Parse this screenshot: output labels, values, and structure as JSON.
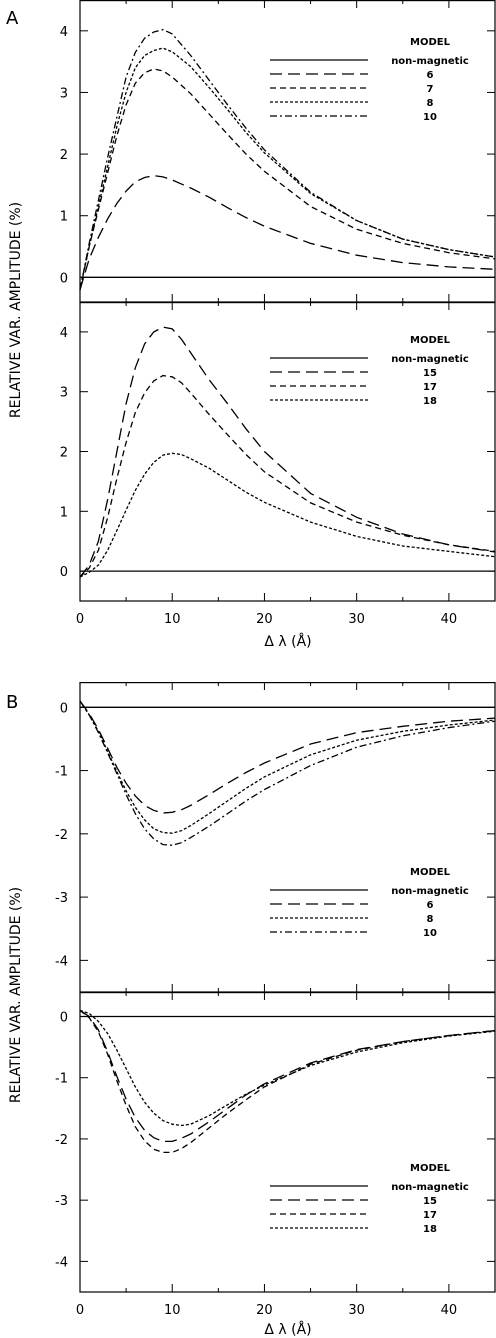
{
  "figure": {
    "panel_a_label": "A",
    "panel_b_label": "B",
    "ylabel": "RELATIVE VAR. AMPLITUDE (%)",
    "xlabel": "Δ λ (Å)"
  },
  "chart_data": [
    {
      "panel": "A",
      "type": "line",
      "position": "top",
      "xlim": [
        0,
        45
      ],
      "ylim": [
        -0.4,
        4.5
      ],
      "yticks": [
        0,
        1,
        2,
        3,
        4
      ],
      "legend_title": "MODEL",
      "legend_placement": "top-right",
      "grid": false,
      "series": [
        {
          "name": "non-magnetic",
          "style": "solid",
          "x": [
            0,
            45
          ],
          "y": [
            0,
            0
          ]
        },
        {
          "name": "6",
          "style": "long-dash",
          "x": [
            0,
            1,
            2,
            3,
            4,
            5,
            6,
            7,
            8,
            9,
            10,
            12,
            14,
            16,
            18,
            20,
            25,
            30,
            35,
            40,
            45
          ],
          "y": [
            -0.2,
            0.3,
            0.65,
            0.95,
            1.2,
            1.4,
            1.55,
            1.62,
            1.65,
            1.63,
            1.58,
            1.45,
            1.3,
            1.13,
            0.97,
            0.83,
            0.55,
            0.36,
            0.24,
            0.17,
            0.13
          ]
        },
        {
          "name": "7",
          "style": "dash",
          "x": [
            0,
            1,
            2,
            3,
            4,
            5,
            6,
            7,
            8,
            9,
            10,
            12,
            14,
            16,
            18,
            20,
            25,
            30,
            35,
            40,
            45
          ],
          "y": [
            -0.2,
            0.5,
            1.1,
            1.7,
            2.3,
            2.8,
            3.15,
            3.32,
            3.38,
            3.35,
            3.25,
            2.98,
            2.65,
            2.32,
            2.0,
            1.72,
            1.15,
            0.78,
            0.55,
            0.4,
            0.3
          ]
        },
        {
          "name": "8",
          "style": "short-dash",
          "x": [
            0,
            1,
            2,
            3,
            4,
            5,
            6,
            7,
            8,
            9,
            10,
            12,
            14,
            16,
            18,
            20,
            25,
            30,
            35,
            40,
            45
          ],
          "y": [
            -0.2,
            0.5,
            1.15,
            1.8,
            2.45,
            3.0,
            3.4,
            3.6,
            3.68,
            3.72,
            3.66,
            3.42,
            3.08,
            2.72,
            2.35,
            2.02,
            1.36,
            0.92,
            0.62,
            0.45,
            0.33
          ]
        },
        {
          "name": "10",
          "style": "dash-dot",
          "x": [
            0,
            1,
            2,
            3,
            4,
            5,
            6,
            7,
            8,
            9,
            10,
            12,
            14,
            16,
            18,
            20,
            25,
            30,
            35,
            40,
            45
          ],
          "y": [
            -0.2,
            0.55,
            1.25,
            1.95,
            2.6,
            3.25,
            3.65,
            3.88,
            3.98,
            4.02,
            3.95,
            3.6,
            3.2,
            2.8,
            2.42,
            2.07,
            1.38,
            0.92,
            0.62,
            0.45,
            0.33
          ]
        }
      ]
    },
    {
      "panel": "A",
      "type": "line",
      "position": "bottom",
      "xlim": [
        0,
        45
      ],
      "ylim": [
        -0.5,
        4.5
      ],
      "yticks": [
        0,
        1,
        2,
        3,
        4
      ],
      "xticks": [
        0,
        10,
        20,
        30,
        40
      ],
      "legend_title": "MODEL",
      "legend_placement": "top-right",
      "grid": false,
      "series": [
        {
          "name": "non-magnetic",
          "style": "solid",
          "x": [
            0,
            45
          ],
          "y": [
            0,
            0
          ]
        },
        {
          "name": "15",
          "style": "long-dash",
          "x": [
            0,
            1,
            2,
            3,
            4,
            5,
            6,
            7,
            8,
            9,
            10,
            11,
            12,
            14,
            16,
            18,
            20,
            25,
            30,
            35,
            40,
            45
          ],
          "y": [
            -0.1,
            0.1,
            0.5,
            1.2,
            2.0,
            2.8,
            3.4,
            3.8,
            4.0,
            4.08,
            4.05,
            3.88,
            3.65,
            3.2,
            2.8,
            2.38,
            2.0,
            1.3,
            0.9,
            0.62,
            0.44,
            0.32
          ]
        },
        {
          "name": "17",
          "style": "dash",
          "x": [
            0,
            1,
            2,
            3,
            4,
            5,
            6,
            7,
            8,
            9,
            10,
            11,
            12,
            14,
            16,
            18,
            20,
            25,
            30,
            35,
            40,
            45
          ],
          "y": [
            -0.1,
            0.05,
            0.35,
            0.9,
            1.55,
            2.15,
            2.65,
            2.98,
            3.18,
            3.27,
            3.25,
            3.15,
            2.98,
            2.62,
            2.28,
            1.95,
            1.66,
            1.14,
            0.82,
            0.6,
            0.44,
            0.33
          ]
        },
        {
          "name": "18",
          "style": "short-dash",
          "x": [
            0,
            1,
            2,
            3,
            4,
            5,
            6,
            7,
            8,
            9,
            10,
            11,
            12,
            14,
            16,
            18,
            20,
            25,
            30,
            35,
            40,
            45
          ],
          "y": [
            -0.1,
            -0.02,
            0.1,
            0.35,
            0.68,
            1.02,
            1.35,
            1.62,
            1.82,
            1.94,
            1.97,
            1.95,
            1.88,
            1.72,
            1.52,
            1.32,
            1.15,
            0.82,
            0.58,
            0.42,
            0.33,
            0.24
          ]
        }
      ]
    },
    {
      "panel": "B",
      "type": "line",
      "position": "top",
      "xlim": [
        0,
        45
      ],
      "ylim": [
        -4.5,
        0.4
      ],
      "yticks": [
        0,
        -1,
        -2,
        -3,
        -4
      ],
      "legend_title": "MODEL",
      "legend_placement": "lower-right",
      "grid": false,
      "series": [
        {
          "name": "non-magnetic",
          "style": "solid",
          "x": [
            0,
            45
          ],
          "y": [
            0,
            0
          ]
        },
        {
          "name": "6",
          "style": "long-dash",
          "x": [
            0,
            1,
            2,
            3,
            4,
            5,
            6,
            7,
            8,
            9,
            10,
            11,
            12,
            14,
            16,
            18,
            20,
            25,
            30,
            35,
            40,
            45
          ],
          "y": [
            0.1,
            -0.1,
            -0.35,
            -0.65,
            -0.95,
            -1.2,
            -1.4,
            -1.55,
            -1.63,
            -1.67,
            -1.66,
            -1.62,
            -1.55,
            -1.38,
            -1.2,
            -1.03,
            -0.88,
            -0.58,
            -0.4,
            -0.3,
            -0.22,
            -0.17
          ]
        },
        {
          "name": "8",
          "style": "short-dash",
          "x": [
            0,
            1,
            2,
            3,
            4,
            5,
            6,
            7,
            8,
            9,
            10,
            11,
            12,
            14,
            16,
            18,
            20,
            25,
            30,
            35,
            40,
            45
          ],
          "y": [
            0.1,
            -0.12,
            -0.38,
            -0.7,
            -1.02,
            -1.32,
            -1.58,
            -1.78,
            -1.92,
            -1.98,
            -1.99,
            -1.95,
            -1.87,
            -1.68,
            -1.48,
            -1.28,
            -1.1,
            -0.75,
            -0.52,
            -0.38,
            -0.28,
            -0.2
          ]
        },
        {
          "name": "10",
          "style": "dash-dot",
          "x": [
            0,
            1,
            2,
            3,
            4,
            5,
            6,
            7,
            8,
            9,
            10,
            11,
            12,
            14,
            16,
            18,
            20,
            25,
            30,
            35,
            40,
            45
          ],
          "y": [
            0.1,
            -0.12,
            -0.4,
            -0.72,
            -1.05,
            -1.38,
            -1.68,
            -1.92,
            -2.08,
            -2.17,
            -2.18,
            -2.14,
            -2.06,
            -1.88,
            -1.68,
            -1.48,
            -1.3,
            -0.92,
            -0.63,
            -0.45,
            -0.32,
            -0.22
          ]
        }
      ]
    },
    {
      "panel": "B",
      "type": "line",
      "position": "bottom",
      "xlim": [
        0,
        45
      ],
      "ylim": [
        -4.5,
        0.4
      ],
      "yticks": [
        0,
        -1,
        -2,
        -3,
        -4
      ],
      "xticks": [
        0,
        10,
        20,
        30,
        40
      ],
      "legend_title": "MODEL",
      "legend_placement": "lower-right",
      "grid": false,
      "series": [
        {
          "name": "non-magnetic",
          "style": "solid",
          "x": [
            0,
            45
          ],
          "y": [
            0,
            0
          ]
        },
        {
          "name": "15",
          "style": "long-dash",
          "x": [
            0,
            1,
            2,
            3,
            4,
            5,
            6,
            7,
            8,
            9,
            10,
            11,
            12,
            14,
            16,
            18,
            20,
            25,
            30,
            35,
            40,
            45
          ],
          "y": [
            0.1,
            0,
            -0.22,
            -0.58,
            -0.98,
            -1.35,
            -1.65,
            -1.86,
            -1.98,
            -2.04,
            -2.04,
            -1.99,
            -1.92,
            -1.72,
            -1.5,
            -1.28,
            -1.1,
            -0.76,
            -0.54,
            -0.41,
            -0.31,
            -0.23
          ]
        },
        {
          "name": "17",
          "style": "dash",
          "x": [
            0,
            1,
            2,
            3,
            4,
            5,
            6,
            7,
            8,
            9,
            10,
            11,
            12,
            14,
            16,
            18,
            20,
            25,
            30,
            35,
            40,
            45
          ],
          "y": [
            0.1,
            -0.02,
            -0.25,
            -0.62,
            -1.05,
            -1.45,
            -1.8,
            -2.03,
            -2.17,
            -2.22,
            -2.22,
            -2.16,
            -2.06,
            -1.82,
            -1.58,
            -1.36,
            -1.15,
            -0.78,
            -0.55,
            -0.41,
            -0.31,
            -0.23
          ]
        },
        {
          "name": "18",
          "style": "short-dash",
          "x": [
            0,
            1,
            2,
            3,
            4,
            5,
            6,
            7,
            8,
            9,
            10,
            11,
            12,
            14,
            16,
            18,
            20,
            25,
            30,
            35,
            40,
            45
          ],
          "y": [
            0.1,
            0.05,
            -0.08,
            -0.28,
            -0.55,
            -0.85,
            -1.15,
            -1.4,
            -1.58,
            -1.7,
            -1.76,
            -1.78,
            -1.76,
            -1.62,
            -1.44,
            -1.27,
            -1.12,
            -0.8,
            -0.58,
            -0.43,
            -0.32,
            -0.24
          ]
        }
      ]
    }
  ]
}
